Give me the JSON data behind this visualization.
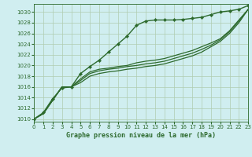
{
  "title": "Graphe pression niveau de la mer (hPa)",
  "background_color": "#d0eef0",
  "plot_bg_color": "#d0eef0",
  "grid_color": "#b0ccb0",
  "line_color": "#2d6a2d",
  "xlim": [
    0,
    23
  ],
  "ylim": [
    1009.5,
    1031.5
  ],
  "yticks": [
    1010,
    1012,
    1014,
    1016,
    1018,
    1020,
    1022,
    1024,
    1026,
    1028,
    1030
  ],
  "xticks": [
    0,
    1,
    2,
    3,
    4,
    5,
    6,
    7,
    8,
    9,
    10,
    11,
    12,
    13,
    14,
    15,
    16,
    17,
    18,
    19,
    20,
    21,
    22,
    23
  ],
  "series": [
    {
      "y": [
        1010,
        1011,
        1013.5,
        1016,
        1016,
        1017.5,
        1018.8,
        1019.3,
        1019.5,
        1019.8,
        1020.0,
        1020.5,
        1020.8,
        1021.0,
        1021.3,
        1021.8,
        1022.3,
        1022.8,
        1023.5,
        1024.2,
        1025.0,
        1026.5,
        1028.5,
        1030.5
      ],
      "marker": false,
      "lw": 0.9
    },
    {
      "y": [
        1010,
        1011,
        1013.5,
        1016,
        1016,
        1017.2,
        1018.5,
        1019.0,
        1019.3,
        1019.5,
        1019.8,
        1020.0,
        1020.3,
        1020.5,
        1020.8,
        1021.3,
        1021.8,
        1022.3,
        1023.0,
        1023.8,
        1024.8,
        1026.3,
        1028.3,
        1030.5
      ],
      "marker": false,
      "lw": 0.9
    },
    {
      "y": [
        1010,
        1011,
        1013.5,
        1016,
        1016,
        1016.8,
        1018.0,
        1018.5,
        1018.8,
        1019.0,
        1019.3,
        1019.5,
        1019.8,
        1020.0,
        1020.3,
        1020.8,
        1021.3,
        1021.8,
        1022.5,
        1023.5,
        1024.5,
        1026.0,
        1028.0,
        1030.5
      ],
      "marker": false,
      "lw": 0.9
    },
    {
      "y": [
        1010,
        1011.2,
        1013.8,
        1015.8,
        1016,
        1018.5,
        1019.8,
        1021.0,
        1022.5,
        1024.0,
        1025.5,
        1027.5,
        1028.3,
        1028.5,
        1028.5,
        1028.5,
        1028.6,
        1028.8,
        1029.0,
        1029.5,
        1030.0,
        1030.2,
        1030.5,
        1031.2
      ],
      "marker": true,
      "lw": 1.0
    }
  ]
}
